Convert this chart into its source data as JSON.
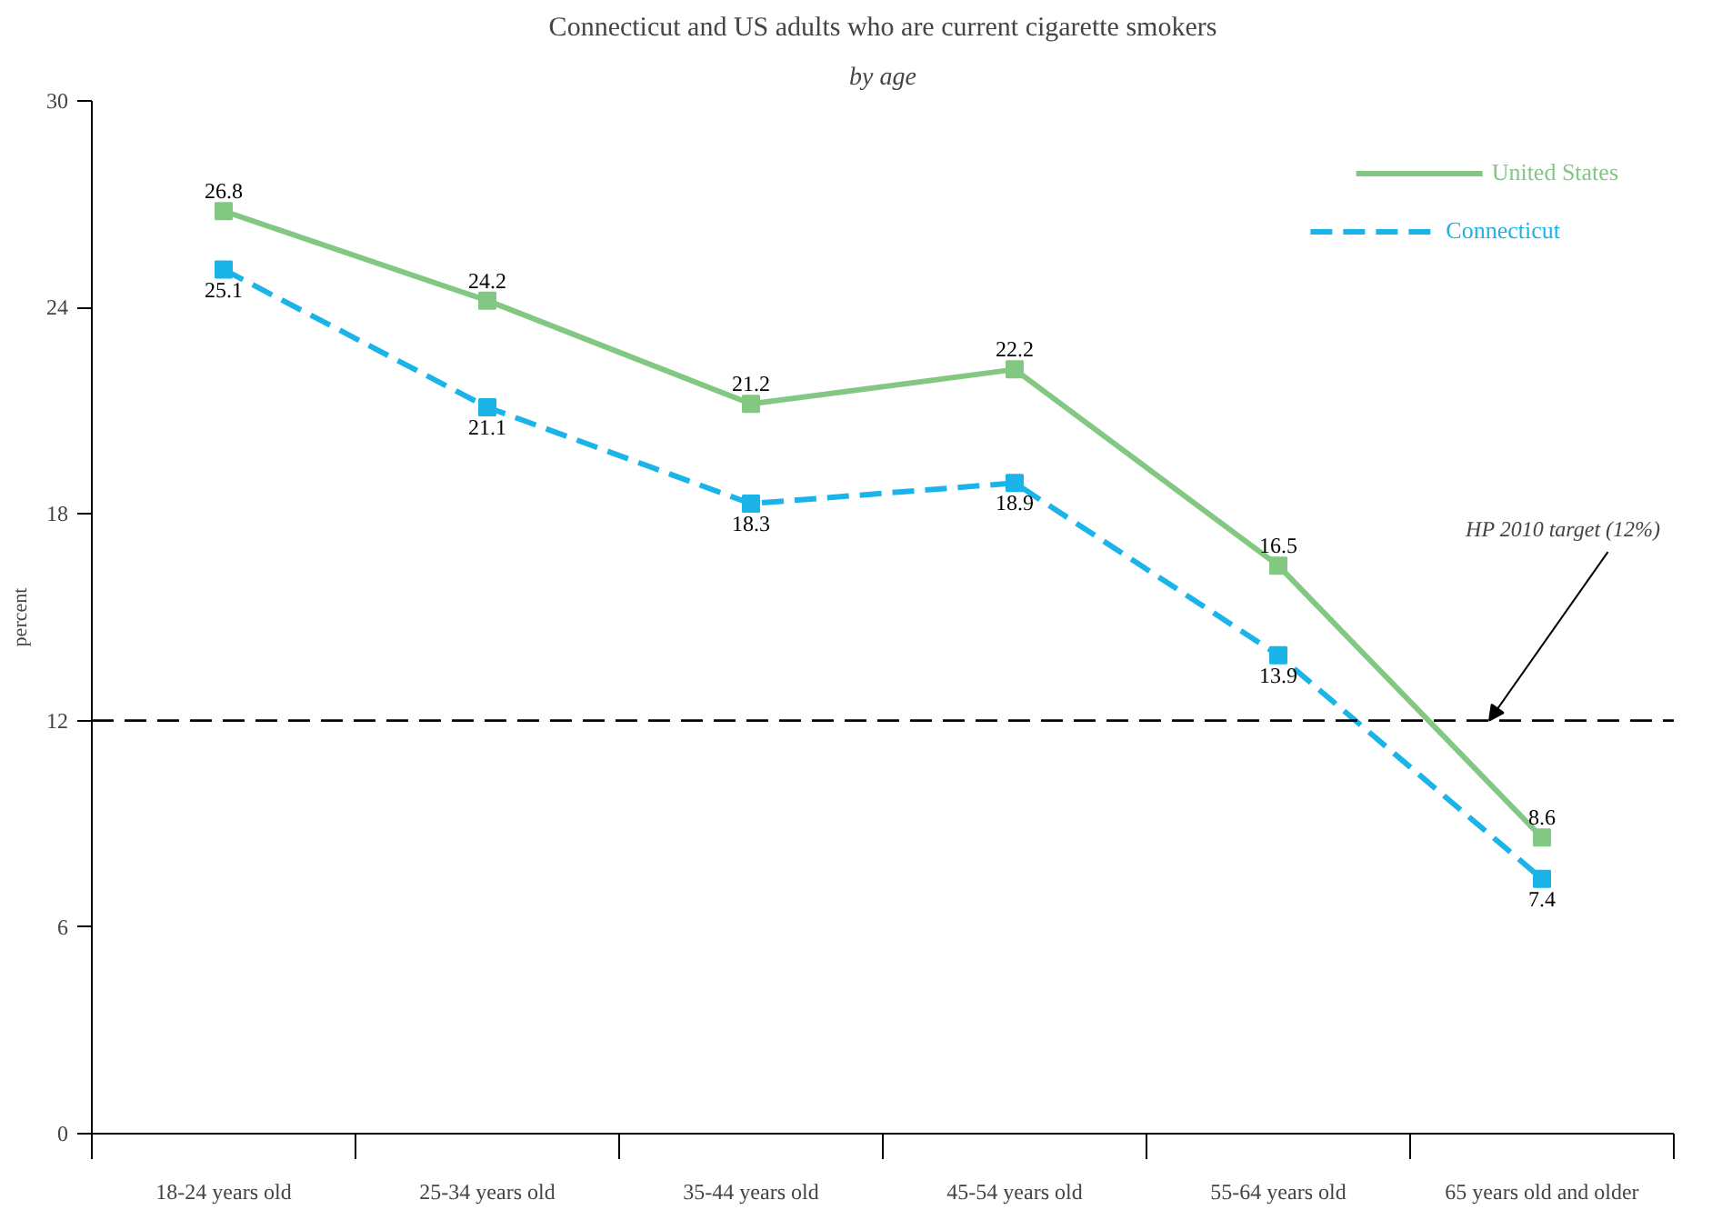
{
  "chart_data": {
    "type": "line",
    "title": "Connecticut and US adults who are current cigarette smokers",
    "subtitle": "by age",
    "ylabel": "percent",
    "categories": [
      "18-24 years old",
      "25-34 years old",
      "35-44 years old",
      "45-54 years old",
      "55-64 years old",
      "65 years old and older"
    ],
    "series": [
      {
        "name": "United States",
        "color": "#82c882",
        "line_style": "solid",
        "values": [
          26.8,
          24.2,
          21.2,
          22.2,
          16.5,
          8.6
        ]
      },
      {
        "name": "Connecticut",
        "color": "#1ab4e8",
        "line_style": "dashed",
        "values": [
          25.1,
          21.1,
          18.3,
          18.9,
          13.9,
          7.4
        ]
      }
    ],
    "ylim": [
      0,
      30
    ],
    "yticks": [
      0,
      6,
      12,
      18,
      24,
      30
    ],
    "legend": "top right",
    "marker": "square",
    "data_labels": true,
    "ref_lines": [
      {
        "axis": "y",
        "value": 12,
        "label": "HP 2010 target (12%)",
        "color": "#000000",
        "line_style": "dashed"
      }
    ]
  }
}
